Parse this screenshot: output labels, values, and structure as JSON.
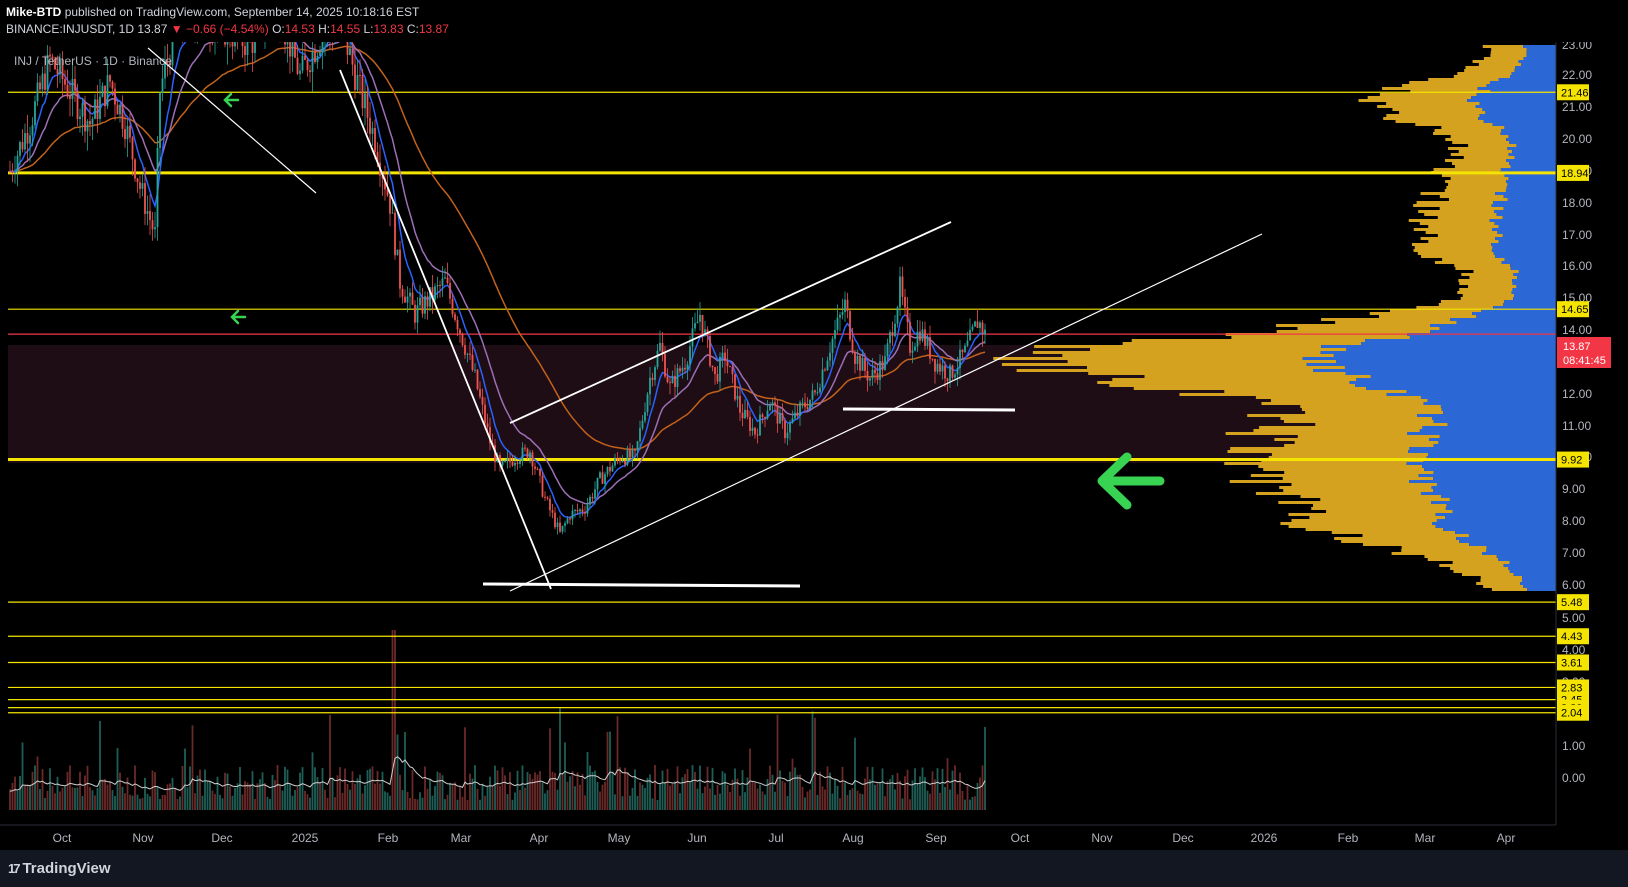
{
  "header": {
    "publisher": "Mike-BTD",
    "published_text": "published on TradingView.com, September 14, 2025 10:18:16 EST",
    "symbol": "BINANCE:INJUSDT, 1D",
    "last": "13.87",
    "change": "−0.66 (−4.54%)",
    "o_label": "O:",
    "o": "14.53",
    "h_label": "H:",
    "h": "14.55",
    "l_label": "L:",
    "l": "13.83",
    "c_label": "C:",
    "c": "13.87"
  },
  "legend_title": "INJ / TetherUS · 1D · Binance",
  "footer": {
    "brand": "TradingView",
    "brand_mark": "17"
  },
  "colors": {
    "background": "#000000",
    "footer": "#131722",
    "up": "#26a69a",
    "down": "#ef5350",
    "ema_fast": "#2962ff",
    "ema_mid": "#9c6fb6",
    "ema_slow": "#c2621b",
    "level": "#f5e400",
    "current": "#f23645",
    "arrow": "#39d353",
    "vp_up": "#d4a21f",
    "vp_down": "#2c67d6"
  },
  "chart_data": {
    "type": "candlestick",
    "symbol": "BINANCE:INJUSDT",
    "timeframe": "1D",
    "price_scale": "log",
    "y_ticks": [
      "23.00",
      "22.00",
      "21.00",
      "20.00",
      "19.00",
      "18.00",
      "17.00",
      "16.00",
      "15.00",
      "14.00",
      "13.00",
      "12.00",
      "11.00",
      "10.00",
      "9.00",
      "8.00",
      "7.00",
      "6.00",
      "5.00",
      "4.00",
      "3.00",
      "2.00",
      "1.00",
      "0.00"
    ],
    "x_ticks": [
      "Oct",
      "Nov",
      "Dec",
      "2025",
      "Feb",
      "Mar",
      "Apr",
      "May",
      "Jun",
      "Jul",
      "Aug",
      "Sep",
      "Oct",
      "Nov",
      "Dec",
      "2026",
      "Feb",
      "Mar",
      "Apr"
    ],
    "horizontal_levels": [
      "21.46",
      "18.94",
      "14.65",
      "9.92",
      "5.48",
      "4.43",
      "3.61",
      "2.83",
      "2.45",
      "2.20",
      "2.04"
    ],
    "current_price": "13.87",
    "countdown": "08:41:45",
    "approx_monthly_closes": [
      {
        "month": "2024-10",
        "close": 20.0
      },
      {
        "month": "2024-11",
        "close": 25.0
      },
      {
        "month": "2024-12",
        "close": 24.0
      },
      {
        "month": "2025-01",
        "close": 22.0
      },
      {
        "month": "2025-02",
        "close": 14.5
      },
      {
        "month": "2025-03",
        "close": 9.2
      },
      {
        "month": "2025-04",
        "close": 8.0
      },
      {
        "month": "2025-05",
        "close": 13.5
      },
      {
        "month": "2025-06",
        "close": 11.5
      },
      {
        "month": "2025-07",
        "close": 14.0
      },
      {
        "month": "2025-08",
        "close": 13.5
      },
      {
        "month": "2025-09",
        "close": 13.87
      }
    ],
    "indicators": [
      "EMA fast (blue)",
      "EMA mid (purple)",
      "EMA slow (orange)",
      "Volume",
      "Visible range volume profile"
    ]
  }
}
